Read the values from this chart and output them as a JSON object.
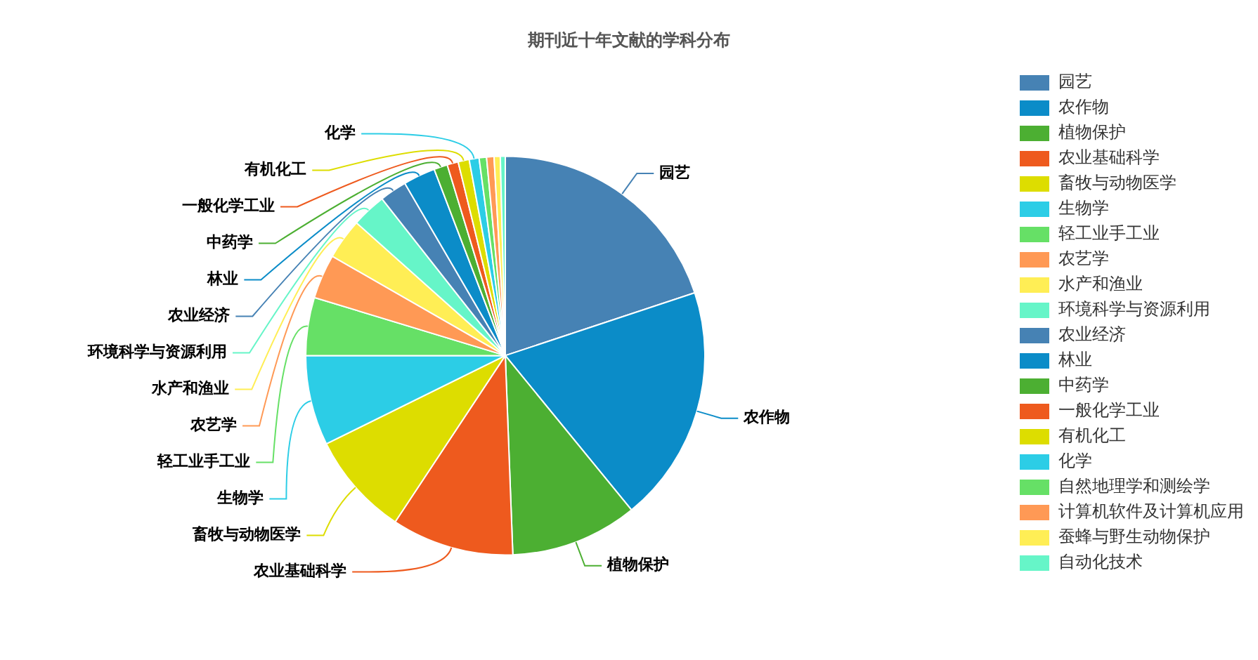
{
  "chart_data": {
    "type": "pie",
    "title": "期刊近十年文献的学科分布",
    "categories": [
      "园艺",
      "农作物",
      "植物保护",
      "农业基础科学",
      "畜牧与动物医学",
      "生物学",
      "轻工业手工业",
      "农艺学",
      "水产和渔业",
      "环境科学与资源利用",
      "农业经济",
      "林业",
      "中药学",
      "一般化学工业",
      "有机化工",
      "化学",
      "自然地理学和测绘学",
      "计算机软件及计算机应用",
      "蚕蜂与野生动物保护",
      "自动化技术"
    ],
    "values": [
      19.9,
      19.2,
      10.3,
      9.9,
      8.4,
      7.3,
      4.7,
      3.6,
      3.3,
      2.8,
      2.2,
      2.6,
      1.1,
      0.9,
      0.9,
      0.8,
      0.6,
      0.6,
      0.5,
      0.4
    ],
    "colors": [
      "#4682b4",
      "#0b8cc8",
      "#4caf32",
      "#ee5a1e",
      "#dddd00",
      "#2ccde6",
      "#66e066",
      "#ff9955",
      "#ffee55",
      "#66f5c8",
      "#4682b4",
      "#0b8cc8",
      "#4caf32",
      "#ee5a1e",
      "#dddd00",
      "#2ccde6",
      "#66e066",
      "#ff9955",
      "#ffee55",
      "#66f5c8"
    ],
    "legend": "right"
  }
}
